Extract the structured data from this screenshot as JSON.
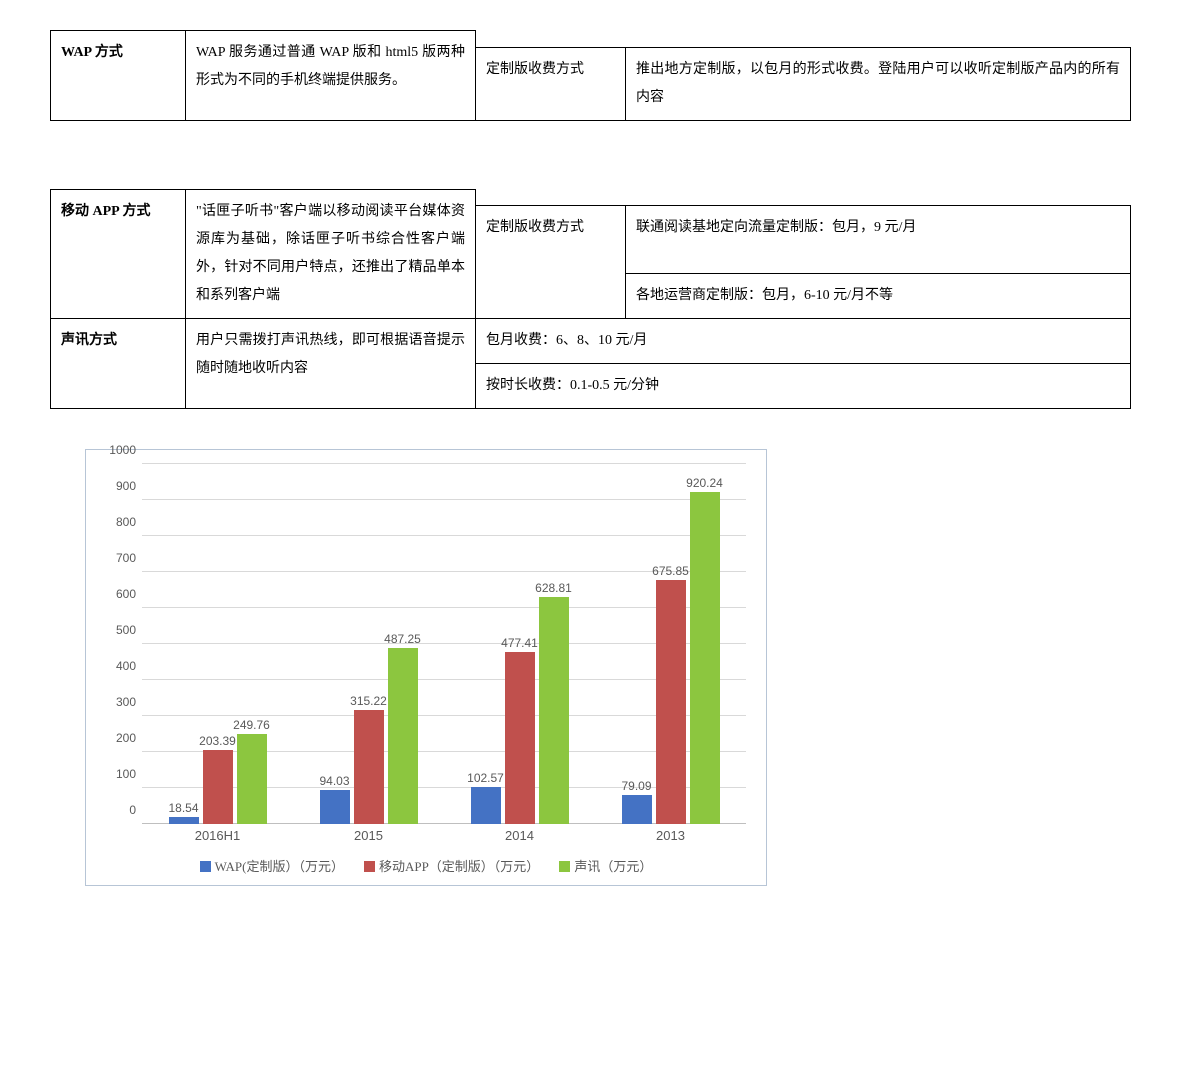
{
  "table1": {
    "rows": [
      {
        "c0": "WAP 方式",
        "c1": "WAP 服务通过普通 WAP 版和 html5 版两种形式为不同的手机终端提供服务。",
        "c2": "定制版收费方式",
        "c3": "推出地方定制版，以包月的形式收费。登陆用户可以收听定制版产品内的所有内容"
      }
    ]
  },
  "table2": {
    "rows": [
      {
        "c0": "移动 APP 方式",
        "c1": "\"话匣子听书\"客户端以移动阅读平台媒体资源库为基础，除话匣子听书综合性客户端外，针对不同用户特点，还推出了精品单本和系列客户端",
        "sub": [
          {
            "c2": "定制版收费方式",
            "c3": "联通阅读基地定向流量定制版：包月，9 元/月"
          },
          {
            "c2": "",
            "c3": "各地运营商定制版：包月，6-10 元/月不等"
          }
        ]
      },
      {
        "c0": "声讯方式",
        "c1": "用户只需拨打声讯热线，即可根据语音提示随时随地收听内容",
        "sub": [
          {
            "c2span": "包月收费：6、8、10 元/月"
          },
          {
            "c2span": "按时长收费：0.1-0.5 元/分钟"
          }
        ]
      }
    ]
  },
  "chart": {
    "type": "bar",
    "ymax": 1000,
    "ystep": 100,
    "categories": [
      "2016H1",
      "2015",
      "2014",
      "2013"
    ],
    "series": [
      {
        "name": "WAP(定制版）（万元）",
        "color": "#4472c4",
        "values": [
          18.54,
          94.03,
          102.57,
          79.09
        ]
      },
      {
        "name": "移动APP（定制版）（万元）",
        "color": "#c0504d",
        "values": [
          203.39,
          315.22,
          477.41,
          675.85
        ]
      },
      {
        "name": "声讯（万元）",
        "color": "#8cc63f",
        "values": [
          249.76,
          487.25,
          628.81,
          920.24
        ]
      }
    ],
    "grid_color": "#d9d9d9",
    "axis_color": "#bfbfbf",
    "text_color": "#595959",
    "title_fontsize": 12,
    "background_color": "#ffffff"
  }
}
